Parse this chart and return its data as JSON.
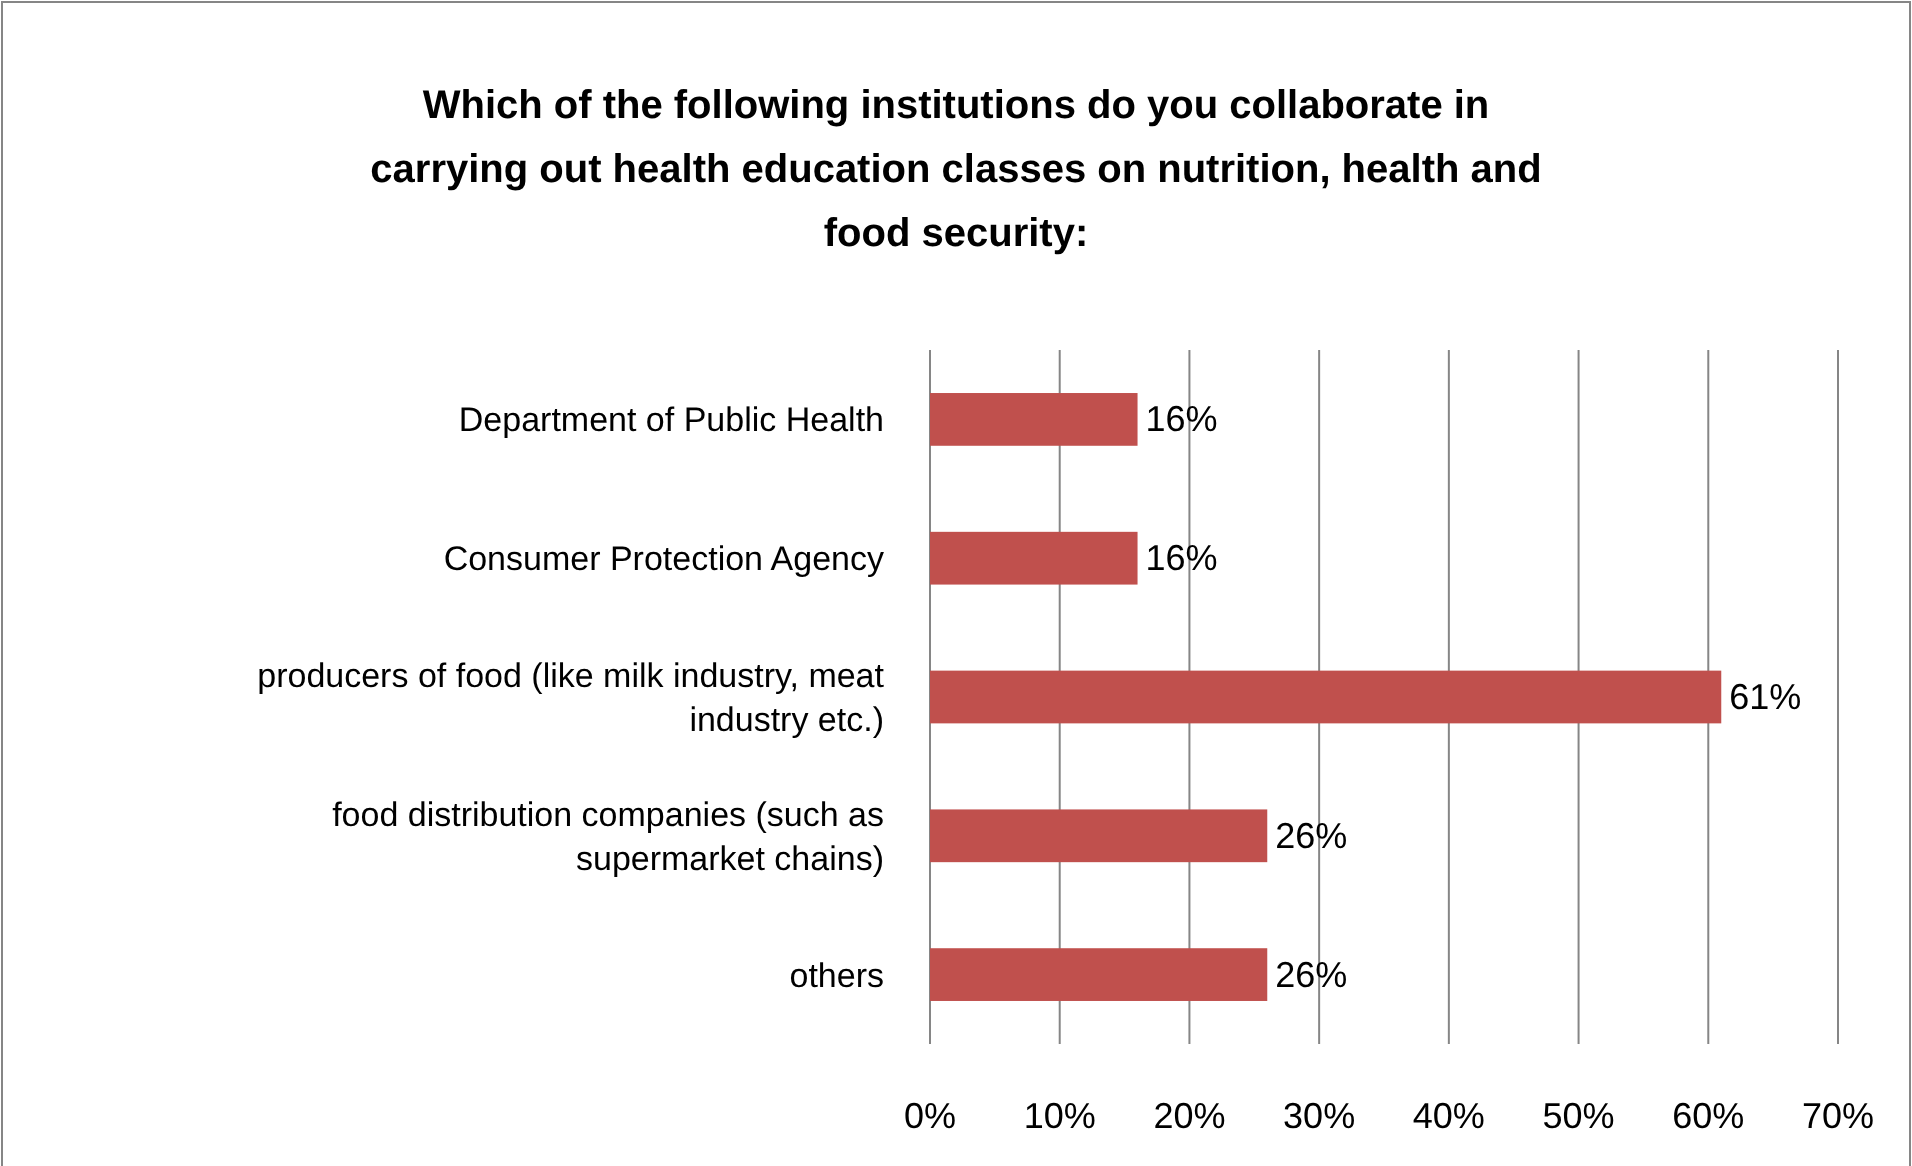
{
  "chart_data": {
    "type": "bar",
    "orientation": "horizontal",
    "title": "Which of the following institutions do you collaborate in carrying out health education classes on nutrition, health and food security:",
    "categories": [
      "Department of Public Health",
      "Consumer Protection Agency",
      "producers of food (like milk industry, meat industry etc.)",
      "food distribution companies (such as supermarket chains)",
      "others"
    ],
    "values": [
      16,
      16,
      61,
      26,
      26
    ],
    "value_labels": [
      "16%",
      "16%",
      "61%",
      "26%",
      "26%"
    ],
    "color": "#c0504d",
    "xlim": [
      0,
      70
    ],
    "xticks": [
      {
        "value": 0,
        "label": "0%"
      },
      {
        "value": 10,
        "label": "10%"
      },
      {
        "value": 20,
        "label": "20%"
      },
      {
        "value": 30,
        "label": "30%"
      },
      {
        "value": 40,
        "label": "40%"
      },
      {
        "value": 50,
        "label": "50%"
      },
      {
        "value": 60,
        "label": "60%"
      },
      {
        "value": 70,
        "label": "70%"
      }
    ],
    "grid": "x"
  }
}
